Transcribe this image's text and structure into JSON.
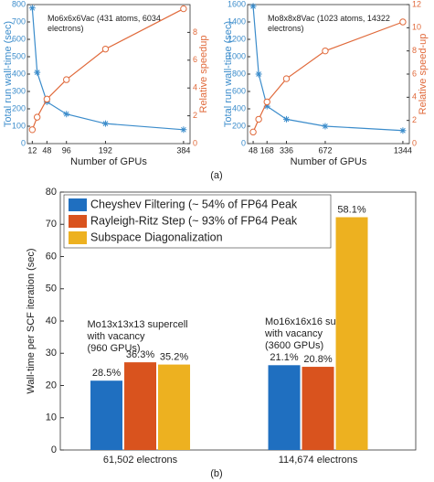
{
  "chart_data": [
    {
      "type": "line",
      "title": "Mo6x6x6Vac (431 atoms, 6034 electrons)",
      "xlabel": "Number of GPUs",
      "ylabel": "Total run wall-time (sec)",
      "y2label": "Relative speedup",
      "x": [
        12,
        24,
        48,
        96,
        192,
        384
      ],
      "xlim": [
        0,
        400
      ],
      "xticks": [
        12,
        48,
        96,
        192,
        384
      ],
      "ylim": [
        0,
        800
      ],
      "yticks": [
        0,
        100,
        200,
        300,
        400,
        500,
        600,
        700,
        800
      ],
      "y2lim": [
        0,
        10
      ],
      "y2ticks": [
        0,
        2,
        4,
        6,
        8
      ],
      "series": [
        {
          "name": "Total run wall-time",
          "color": "#3b8ccb",
          "marker": "star",
          "values": [
            780,
            410,
            240,
            170,
            115,
            80
          ]
        },
        {
          "name": "Relative speedup",
          "color": "#e0693a",
          "marker": "circle",
          "axis": "y2",
          "values": [
            1,
            1.9,
            3.2,
            4.6,
            6.8,
            9.7
          ]
        }
      ]
    },
    {
      "type": "line",
      "title": "Mo8x8x8Vac (1023 atoms, 14322 electrons)",
      "xlabel": "Number of GPUs",
      "ylabel": "Total run wall-time (sec)",
      "y2label": "Relative speed-up",
      "x": [
        48,
        96,
        168,
        336,
        672,
        1344
      ],
      "xlim": [
        0,
        1400
      ],
      "xticks": [
        48,
        168,
        336,
        672,
        1344
      ],
      "ylim": [
        0,
        1600
      ],
      "yticks": [
        0,
        200,
        400,
        600,
        800,
        1000,
        1200,
        1400,
        1600
      ],
      "y2lim": [
        0,
        12
      ],
      "y2ticks": [
        0,
        2,
        4,
        6,
        8,
        10,
        12
      ],
      "series": [
        {
          "name": "Total run wall-time",
          "color": "#3b8ccb",
          "marker": "star",
          "values": [
            1580,
            800,
            430,
            280,
            200,
            150
          ]
        },
        {
          "name": "Relative speed-up",
          "color": "#e0693a",
          "marker": "circle",
          "axis": "y2",
          "values": [
            1,
            2.1,
            3.6,
            5.6,
            8,
            10.5
          ]
        }
      ]
    },
    {
      "type": "bar",
      "ylabel": "Wall-time per SCF iteration (sec)",
      "categories": [
        "61,502 electrons",
        "114,674 electrons"
      ],
      "ylim": [
        0,
        80
      ],
      "yticks": [
        0,
        10,
        20,
        30,
        40,
        50,
        60,
        70,
        80
      ],
      "annotations": [
        [
          "Mo13x13x13 supercell",
          "with vacancy",
          "(960 GPUs)"
        ],
        [
          "Mo16x16x16 supercell",
          "with vacancy",
          "(3600 GPUs)"
        ]
      ],
      "series": [
        {
          "name": "Cheyshev Filtering (~ 54% of FP64 Peak",
          "color": "#1f6fc0",
          "values": [
            21.5,
            26.3
          ],
          "peak_labels": [
            "28.5%",
            "21.1%"
          ]
        },
        {
          "name": "Rayleigh-Ritz Step (~ 93% of FP64 Peak",
          "color": "#d9531e",
          "values": [
            27.2,
            25.8
          ],
          "peak_labels": [
            "36.3%",
            "20.8%"
          ]
        },
        {
          "name": "Subspace Diagonalization",
          "color": "#edb120",
          "values": [
            26.5,
            72.2
          ],
          "peak_labels": [
            "35.2%",
            "58.1%"
          ]
        }
      ]
    }
  ],
  "panel_labels": [
    "(a)",
    "(b)"
  ]
}
